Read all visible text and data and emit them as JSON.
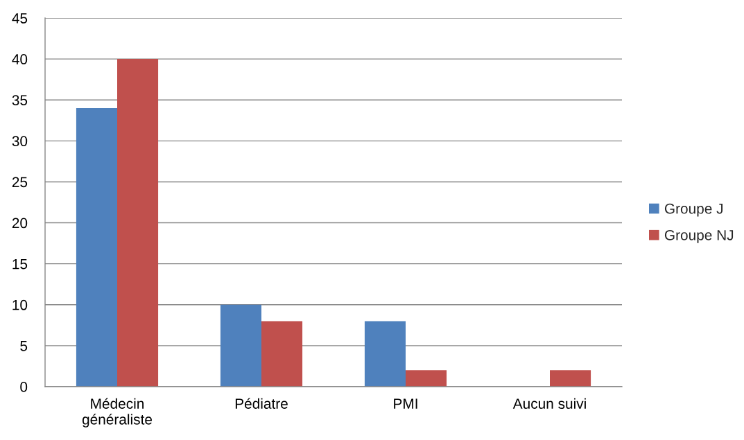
{
  "chart_data": {
    "type": "bar",
    "categories": [
      "Médecin\ngénéraliste",
      "Pédiatre",
      "PMI",
      "Aucun suivi"
    ],
    "series": [
      {
        "name": "Groupe J",
        "color": "#4f81bd",
        "values": [
          34,
          10,
          8,
          0
        ]
      },
      {
        "name": "Groupe NJ",
        "color": "#c0504d",
        "values": [
          40,
          8,
          2,
          2
        ]
      }
    ],
    "ylim": [
      0,
      45
    ],
    "yticks": [
      0,
      5,
      10,
      15,
      20,
      25,
      30,
      35,
      40,
      45
    ],
    "grid": "y",
    "legend": "right"
  }
}
